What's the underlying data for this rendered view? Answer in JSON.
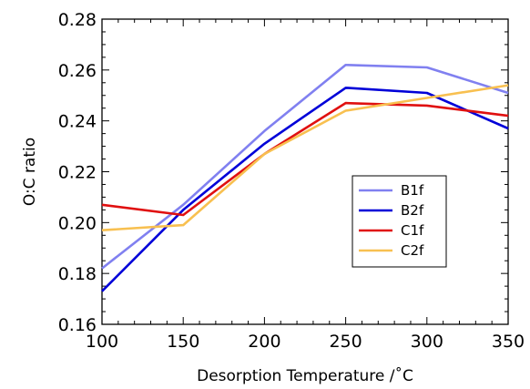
{
  "chart_data": {
    "type": "line",
    "title": "",
    "xlabel": "Desorption Temperature /˚C",
    "ylabel": "O:C ratio",
    "x": [
      100,
      150,
      200,
      250,
      300,
      350
    ],
    "xlim": [
      100,
      350
    ],
    "ylim": [
      0.16,
      0.28
    ],
    "xticks": [
      "100",
      "150",
      "200",
      "250",
      "300",
      "350"
    ],
    "yticks": [
      "0.16",
      "0.18",
      "0.20",
      "0.22",
      "0.24",
      "0.26",
      "0.28"
    ],
    "grid": false,
    "legend_position": "center-right",
    "series": [
      {
        "name": "B1f",
        "color": "#8080f0",
        "values": [
          0.182,
          0.207,
          0.236,
          0.262,
          0.261,
          0.251
        ]
      },
      {
        "name": "B2f",
        "color": "#0000d8",
        "values": [
          0.173,
          0.205,
          0.231,
          0.253,
          0.251,
          0.237
        ]
      },
      {
        "name": "C1f",
        "color": "#e01010",
        "values": [
          0.207,
          0.203,
          0.227,
          0.247,
          0.246,
          0.242
        ]
      },
      {
        "name": "C2f",
        "color": "#f8c050",
        "values": [
          0.197,
          0.199,
          0.227,
          0.244,
          0.249,
          0.254
        ]
      }
    ]
  }
}
